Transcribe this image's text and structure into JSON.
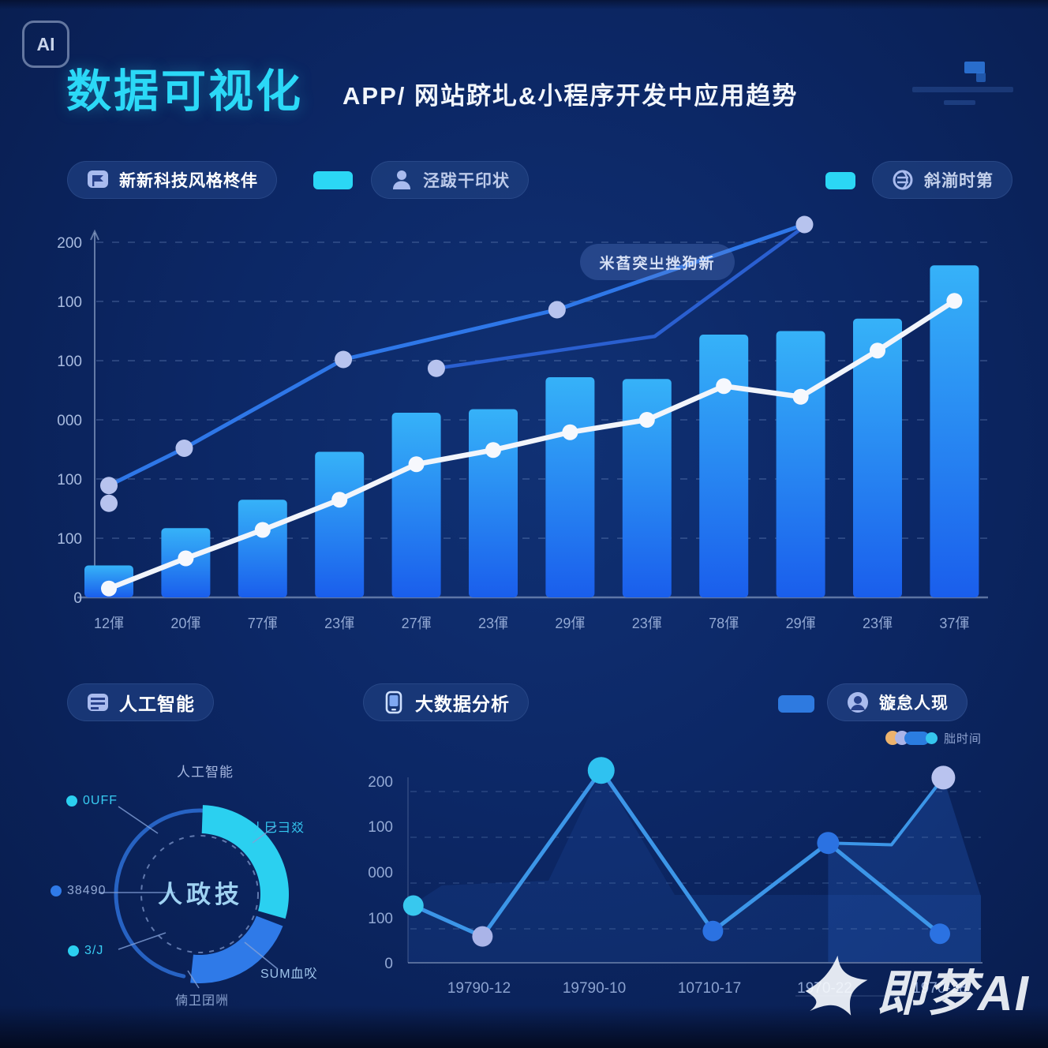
{
  "app": {
    "badge": "AI",
    "title": "数据可视化",
    "subtitle": "APP/ 网站跻圠&小程序开发中应用趋势"
  },
  "legend_chips": {
    "chip1": "新新科技风格柊仹",
    "chip2": "泾跋干印状",
    "chip3": "斜湔时第",
    "accent_cyan": "#2bd7f5",
    "accent_blue": "#2e7ae0"
  },
  "section2": {
    "chip_ai": "人工智能",
    "chip_bigdata": "大数据分析",
    "chip_right": "镟怠人现",
    "mini_legend_label": "朏时间"
  },
  "watermark": {
    "text": "即梦AI"
  },
  "chart_data": [
    {
      "type": "bar",
      "annotation": "米萏突㞢挫狗新",
      "categories": [
        "12㑮",
        "20㑮",
        "77㑮",
        "23㑮",
        "27㑮",
        "23㑮",
        "29㑮",
        "23㑮",
        "78㑮",
        "29㑮",
        "23㑮",
        "37㑮"
      ],
      "y_tick_labels": [
        "200",
        "100",
        "100",
        "000",
        "100",
        "100",
        "0"
      ],
      "ylim": [
        0,
        200
      ],
      "bar_values": [
        18,
        39,
        55,
        82,
        104,
        106,
        124,
        123,
        148,
        150,
        157,
        187
      ],
      "bar_gradient": [
        "#36b2f8",
        "#1a5eec"
      ],
      "series": [
        {
          "name": "blue-line-1",
          "color": "#2e77e8",
          "points": [
            {
              "x": 1.0,
              "v": 63
            },
            {
              "x": 1.98,
              "v": 84
            },
            {
              "x": 4.05,
              "v": 134
            },
            {
              "x": 6.83,
              "v": 162
            },
            {
              "x": 10.05,
              "v": 210
            }
          ],
          "extra_dot": {
            "x": 1.0,
            "v": 53
          }
        },
        {
          "name": "blue-line-2",
          "color": "#2a5fd0",
          "points": [
            {
              "x": 5.26,
              "v": 129
            },
            {
              "x": 8.1,
              "v": 147
            },
            {
              "x": 10.05,
              "v": 209
            }
          ]
        },
        {
          "name": "white-line",
          "color": "#f2f5fb",
          "values": [
            5,
            22,
            38,
            55,
            75,
            83,
            93,
            100,
            119,
            113,
            139,
            167
          ]
        }
      ]
    },
    {
      "type": "pie",
      "center_label": "人政技",
      "segments": [
        {
          "label": "丿巳彐㸚",
          "color": "#2bd0f0",
          "start": -88,
          "end": 16
        },
        {
          "label": "SUM血㕮",
          "color": "#2f7ae8",
          "start": 21,
          "end": 96
        }
      ],
      "outline": {
        "start": 101,
        "end": 272,
        "color": "#2d6fd6"
      },
      "labels": {
        "top": "人工智能",
        "right_top": "丿巳彐㸚",
        "right_bottom": "SUM血㕮",
        "bottom": "㑲卫囝㖄",
        "left_top": "0UFF",
        "left_mid": "38490",
        "left_bottom": "3/J"
      }
    },
    {
      "type": "line",
      "x_tick_labels": [
        "19790-12",
        "19790-10",
        "10710-17",
        "1970-22",
        "1970-28"
      ],
      "y_tick_labels": [
        "200",
        "100",
        "000",
        "100",
        "0"
      ],
      "ylim": [
        0,
        200
      ],
      "line_color": "#3c96e8",
      "points": [
        {
          "i": 0.43,
          "v": 63,
          "color": "#38c8ee",
          "r": 13
        },
        {
          "i": 1.03,
          "v": 29,
          "color": "#aab4e8",
          "r": 13
        },
        {
          "i": 2.06,
          "v": 212,
          "color": "#2fc2f0",
          "r": 17
        },
        {
          "i": 3.03,
          "v": 35,
          "color": "#2b72e2",
          "r": 13
        },
        {
          "i": 4.03,
          "v": 132,
          "color": "#2b72e2",
          "r": 14
        },
        {
          "i": 5.03,
          "v": 204,
          "color": "#b9c3ef",
          "r": 15
        },
        {
          "i": 5.0,
          "v": 32,
          "color": "#2b72e2",
          "r": 13
        }
      ],
      "main_path_point_indices": [
        0,
        1,
        2,
        3,
        4,
        6
      ],
      "ridge_path": [
        {
          "i": 4.03,
          "v": 132
        },
        {
          "i": 4.58,
          "v": 130
        },
        {
          "i": 5.03,
          "v": 204
        }
      ]
    }
  ]
}
